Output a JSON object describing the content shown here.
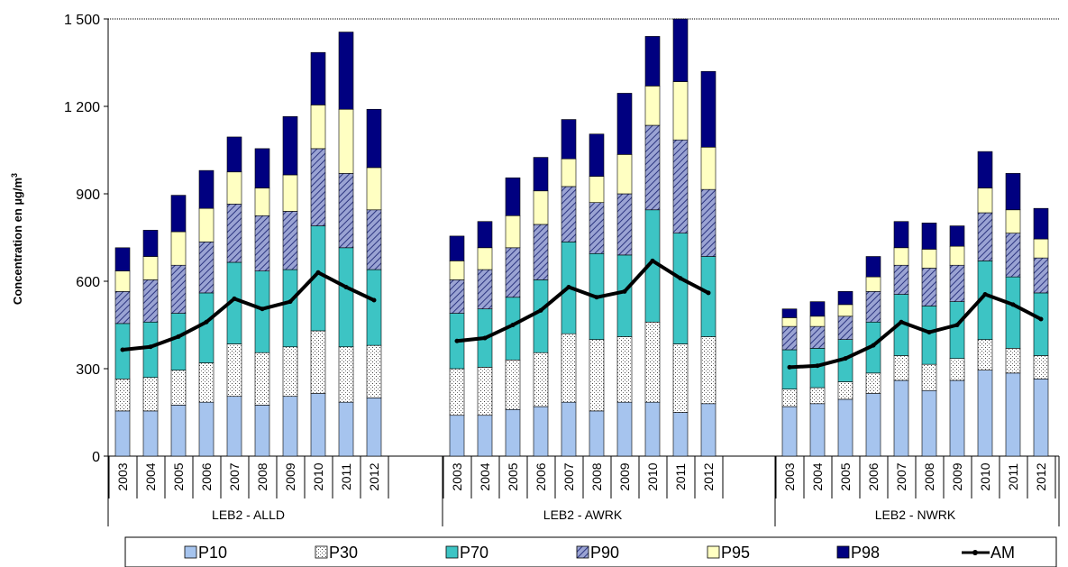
{
  "chart_data": {
    "type": "bar",
    "subtype": "stacked-percentile-bars-with-mean-line",
    "title": "",
    "ylabel_main": "Concentration en µg/m",
    "ylabel_sup": "3",
    "ylim": [
      0,
      1500
    ],
    "yticks": [
      0,
      300,
      600,
      900,
      1200,
      1500
    ],
    "ytick_labels": [
      "0",
      "300",
      "600",
      "900",
      "1 200",
      "1 500"
    ],
    "grid": "dotted line at top only",
    "legend_position": "bottom",
    "groups": [
      {
        "label": "LEB2 - ALLD",
        "years": [
          "2003",
          "2004",
          "2005",
          "2006",
          "2007",
          "2008",
          "2009",
          "2010",
          "2011",
          "2012"
        ],
        "P10": [
          155,
          155,
          175,
          185,
          205,
          175,
          205,
          215,
          185,
          200
        ],
        "P30": [
          265,
          270,
          295,
          320,
          385,
          355,
          375,
          430,
          375,
          380
        ],
        "P70": [
          455,
          460,
          490,
          560,
          665,
          635,
          640,
          790,
          715,
          640
        ],
        "P90": [
          565,
          605,
          655,
          735,
          865,
          825,
          840,
          1055,
          970,
          845
        ],
        "P95": [
          635,
          685,
          770,
          850,
          975,
          920,
          965,
          1205,
          1190,
          990
        ],
        "P98": [
          715,
          775,
          895,
          980,
          1095,
          1055,
          1165,
          1385,
          1455,
          1190
        ],
        "AM": [
          365,
          375,
          410,
          460,
          540,
          505,
          530,
          630,
          580,
          535
        ]
      },
      {
        "label": "LEB2 - AWRK",
        "years": [
          "2003",
          "2004",
          "2005",
          "2006",
          "2007",
          "2008",
          "2009",
          "2010",
          "2011",
          "2012"
        ],
        "P10": [
          140,
          140,
          160,
          170,
          185,
          155,
          185,
          185,
          150,
          180
        ],
        "P30": [
          300,
          305,
          330,
          355,
          420,
          400,
          410,
          460,
          385,
          410
        ],
        "P70": [
          490,
          505,
          545,
          605,
          735,
          695,
          690,
          845,
          765,
          685
        ],
        "P90": [
          605,
          640,
          715,
          795,
          925,
          870,
          900,
          1135,
          1085,
          915
        ],
        "P95": [
          670,
          715,
          825,
          910,
          1020,
          960,
          1035,
          1270,
          1285,
          1060
        ],
        "P98": [
          755,
          805,
          955,
          1025,
          1155,
          1105,
          1245,
          1440,
          1500,
          1320
        ],
        "AM": [
          395,
          405,
          450,
          500,
          580,
          545,
          565,
          670,
          610,
          560
        ]
      },
      {
        "label": "LEB2 - NWRK",
        "years": [
          "2003",
          "2004",
          "2005",
          "2006",
          "2007",
          "2008",
          "2009",
          "2010",
          "2011",
          "2012"
        ],
        "P10": [
          170,
          180,
          195,
          215,
          260,
          225,
          260,
          295,
          285,
          265
        ],
        "P30": [
          230,
          235,
          255,
          285,
          345,
          315,
          335,
          400,
          370,
          345
        ],
        "P70": [
          365,
          370,
          400,
          460,
          555,
          515,
          530,
          670,
          615,
          560
        ],
        "P90": [
          445,
          445,
          480,
          565,
          655,
          645,
          655,
          835,
          765,
          680
        ],
        "P95": [
          475,
          480,
          520,
          615,
          715,
          710,
          720,
          920,
          845,
          745
        ],
        "P98": [
          505,
          530,
          565,
          685,
          805,
          800,
          790,
          1045,
          970,
          850
        ],
        "AM": [
          305,
          310,
          335,
          380,
          460,
          425,
          450,
          555,
          520,
          470
        ]
      }
    ],
    "series": [
      {
        "name": "P10",
        "color": "#a6c4ee",
        "pattern": "none"
      },
      {
        "name": "P30",
        "color": "#ffffff",
        "pattern": "dots"
      },
      {
        "name": "P70",
        "color": "#3dc4c4",
        "pattern": "none"
      },
      {
        "name": "P90",
        "color": "#8a94c8",
        "pattern": "diagonal-hatch"
      },
      {
        "name": "P95",
        "color": "#ffffc2",
        "pattern": "none"
      },
      {
        "name": "P98",
        "color": "#000080",
        "pattern": "none"
      },
      {
        "name": "AM",
        "color": "#000000",
        "pattern": "line-with-markers"
      }
    ]
  }
}
